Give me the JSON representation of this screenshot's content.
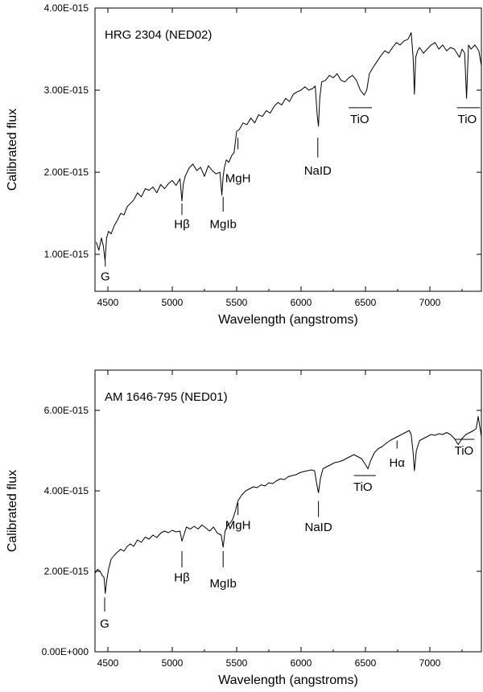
{
  "chart_data": [
    {
      "type": "line",
      "title": "HRG 2304  (NED02)",
      "xlabel": "Wavelength  (angstroms)",
      "ylabel": "Calibrated  flux",
      "xlim": [
        4400,
        7400
      ],
      "ylim": [
        5.5e-16,
        4e-15
      ],
      "xticks": [
        4500,
        5000,
        5500,
        6000,
        6500,
        7000
      ],
      "xtick_labels": [
        "4500",
        "5000",
        "5500",
        "6000",
        "6500",
        "7000"
      ],
      "yticks": [
        1e-15,
        2e-15,
        3e-15,
        4e-15
      ],
      "ytick_labels": [
        "1.00E-015",
        "2.00E-015",
        "3.00E-015",
        "4.00E-015"
      ],
      "series": [
        {
          "x": [
            4410,
            4430,
            4450,
            4465,
            4478,
            4490,
            4505,
            4525,
            4550,
            4575,
            4600,
            4625,
            4650,
            4675,
            4700,
            4730,
            4760,
            4790,
            4820,
            4850,
            4880,
            4910,
            4940,
            4970,
            5000,
            5030,
            5060,
            5075,
            5085,
            5100,
            5130,
            5160,
            5190,
            5220,
            5250,
            5280,
            5310,
            5340,
            5370,
            5385,
            5395,
            5405,
            5420,
            5440,
            5460,
            5480,
            5500,
            5520,
            5550,
            5580,
            5610,
            5640,
            5670,
            5700,
            5730,
            5760,
            5790,
            5820,
            5850,
            5880,
            5910,
            5940,
            5970,
            6000,
            6030,
            6060,
            6090,
            6110,
            6125,
            6135,
            6145,
            6160,
            6190,
            6220,
            6250,
            6280,
            6310,
            6340,
            6370,
            6400,
            6430,
            6460,
            6490,
            6510,
            6530,
            6560,
            6590,
            6620,
            6650,
            6680,
            6710,
            6740,
            6770,
            6800,
            6830,
            6855,
            6870,
            6880,
            6890,
            6905,
            6920,
            6950,
            6980,
            7010,
            7040,
            7070,
            7100,
            7130,
            7160,
            7190,
            7210,
            7230,
            7250,
            7270,
            7285,
            7300,
            7320,
            7350,
            7380,
            7400
          ],
          "y": [
            1.15e-15,
            1.05e-15,
            1.2e-15,
            1.1e-15,
            9.2e-16,
            1.2e-15,
            1.28e-15,
            1.25e-15,
            1.35e-15,
            1.42e-15,
            1.5e-15,
            1.48e-15,
            1.58e-15,
            1.62e-15,
            1.66e-15,
            1.75e-15,
            1.7e-15,
            1.8e-15,
            1.78e-15,
            1.82e-15,
            1.75e-15,
            1.85e-15,
            1.8e-15,
            1.86e-15,
            1.9e-15,
            1.84e-15,
            1.92e-15,
            1.65e-15,
            1.85e-15,
            1.95e-15,
            2.05e-15,
            2.1e-15,
            2.02e-15,
            2.06e-15,
            1.95e-15,
            2.08e-15,
            2.02e-15,
            1.98e-15,
            2e-15,
            1.72e-15,
            1.95e-15,
            2.06e-15,
            2.15e-15,
            2.12e-15,
            2.2e-15,
            2.24e-15,
            2.5e-15,
            2.52e-15,
            2.6e-15,
            2.58e-15,
            2.66e-15,
            2.6e-15,
            2.7e-15,
            2.68e-15,
            2.75e-15,
            2.72e-15,
            2.8e-15,
            2.85e-15,
            2.82e-15,
            2.9e-15,
            2.86e-15,
            2.95e-15,
            2.98e-15,
            3e-15,
            3.04e-15,
            3e-15,
            3.02e-15,
            3.05e-15,
            2.7e-15,
            2.56e-15,
            2.9e-15,
            3.1e-15,
            3.12e-15,
            3.18e-15,
            3.15e-15,
            3.2e-15,
            3.12e-15,
            3.1e-15,
            3.15e-15,
            3.18e-15,
            3.12e-15,
            3e-15,
            2.94e-15,
            3e-15,
            3.2e-15,
            3.28e-15,
            3.35e-15,
            3.42e-15,
            3.48e-15,
            3.45e-15,
            3.52e-15,
            3.58e-15,
            3.55e-15,
            3.6e-15,
            3.62e-15,
            3.7e-15,
            3.4e-15,
            2.95e-15,
            3.4e-15,
            3.48e-15,
            3.52e-15,
            3.45e-15,
            3.5e-15,
            3.55e-15,
            3.58e-15,
            3.5e-15,
            3.55e-15,
            3.48e-15,
            3.52e-15,
            3.5e-15,
            3.45e-15,
            3.4e-15,
            3.5e-15,
            3.45e-15,
            2.9e-15,
            3.55e-15,
            3.5e-15,
            3.55e-15,
            3.48e-15,
            3.3e-15
          ]
        }
      ],
      "annotations": [
        {
          "text": "G",
          "x": 4480,
          "y_line": [
            8.5e-16,
            9.2e-16
          ],
          "y_text": 6.8e-16,
          "overline": false
        },
        {
          "text": "Hβ",
          "x": 5075,
          "y_line": [
            1.48e-15,
            1.62e-15
          ],
          "y_text": 1.32e-15,
          "overline": false
        },
        {
          "text": "MgIb",
          "x": 5395,
          "y_line": [
            1.52e-15,
            1.7e-15
          ],
          "y_text": 1.32e-15,
          "overline": false
        },
        {
          "text": "MgH",
          "x": 5510,
          "y_line": [
            2.28e-15,
            2.42e-15
          ],
          "y_text": 1.88e-15,
          "overline": false
        },
        {
          "text": "NaID",
          "x": 6130,
          "y_line": [
            2.18e-15,
            2.42e-15
          ],
          "y_text": 1.97e-15,
          "overline": false
        },
        {
          "text": "TiO",
          "x": 6455,
          "x_range": [
            6370,
            6550
          ],
          "y_text": 2.6e-15,
          "overline": true
        },
        {
          "text": "TiO",
          "x": 7290,
          "x_range": [
            7210,
            7390
          ],
          "y_text": 2.6e-15,
          "overline": true
        }
      ]
    },
    {
      "type": "line",
      "title": "AM 1646-795  (NED01)",
      "xlabel": "Wavelength  (angstroms)",
      "ylabel": "Calibrated  flux",
      "xlim": [
        4400,
        7400
      ],
      "ylim": [
        0,
        7e-15
      ],
      "xticks": [
        4500,
        5000,
        5500,
        6000,
        6500,
        7000
      ],
      "xtick_labels": [
        "4500",
        "5000",
        "5500",
        "6000",
        "6500",
        "7000"
      ],
      "yticks": [
        0,
        2e-15,
        4e-15,
        6e-15
      ],
      "ytick_labels": [
        "0.00E+000",
        "2.00E-015",
        "4.00E-015",
        "6.00E-015"
      ],
      "series": [
        {
          "x": [
            4400,
            4420,
            4440,
            4455,
            4470,
            4480,
            4490,
            4505,
            4525,
            4550,
            4575,
            4600,
            4625,
            4650,
            4675,
            4700,
            4730,
            4760,
            4790,
            4820,
            4850,
            4880,
            4910,
            4940,
            4970,
            5000,
            5030,
            5060,
            5075,
            5090,
            5110,
            5140,
            5170,
            5200,
            5230,
            5260,
            5290,
            5320,
            5350,
            5380,
            5395,
            5410,
            5430,
            5450,
            5470,
            5490,
            5510,
            5540,
            5570,
            5600,
            5630,
            5660,
            5690,
            5720,
            5750,
            5780,
            5810,
            5840,
            5870,
            5900,
            5930,
            5960,
            5990,
            6020,
            6050,
            6080,
            6105,
            6120,
            6135,
            6150,
            6170,
            6200,
            6230,
            6260,
            6290,
            6320,
            6350,
            6380,
            6410,
            6440,
            6470,
            6500,
            6520,
            6540,
            6570,
            6600,
            6630,
            6660,
            6690,
            6720,
            6750,
            6780,
            6810,
            6840,
            6855,
            6870,
            6880,
            6895,
            6920,
            6950,
            6980,
            7010,
            7040,
            7070,
            7100,
            7130,
            7160,
            7190,
            7220,
            7250,
            7280,
            7310,
            7340,
            7360,
            7375,
            7390,
            7400
          ],
          "y": [
            1.95e-15,
            2.05e-15,
            2e-15,
            1.9e-15,
            1.85e-15,
            1.45e-15,
            1.75e-15,
            2.05e-15,
            2.3e-15,
            2.4e-15,
            2.48e-15,
            2.55e-15,
            2.5e-15,
            2.62e-15,
            2.68e-15,
            2.62e-15,
            2.78e-15,
            2.72e-15,
            2.85e-15,
            2.8e-15,
            2.9e-15,
            2.84e-15,
            2.95e-15,
            3e-15,
            2.96e-15,
            3.02e-15,
            2.98e-15,
            3e-15,
            2.75e-15,
            2.9e-15,
            3.1e-15,
            3.05e-15,
            3.12e-15,
            3.05e-15,
            3.15e-15,
            3.08e-15,
            3e-15,
            3.1e-15,
            2.95e-15,
            2.9e-15,
            2.6e-15,
            3e-15,
            3.15e-15,
            3.2e-15,
            3.3e-15,
            3.5e-15,
            3.75e-15,
            3.9e-15,
            4e-15,
            4.05e-15,
            4.1e-15,
            4.08e-15,
            4.15e-15,
            4.12e-15,
            4.2e-15,
            4.18e-15,
            4.25e-15,
            4.3e-15,
            4.28e-15,
            4.35e-15,
            4.38e-15,
            4.4e-15,
            4.45e-15,
            4.48e-15,
            4.5e-15,
            4.52e-15,
            4.5e-15,
            4.2e-15,
            3.95e-15,
            4.3e-15,
            4.55e-15,
            4.6e-15,
            4.65e-15,
            4.7e-15,
            4.72e-15,
            4.75e-15,
            4.8e-15,
            4.85e-15,
            4.9e-15,
            4.85e-15,
            4.8e-15,
            4.65e-15,
            4.55e-15,
            4.75e-15,
            4.95e-15,
            5.05e-15,
            5.1e-15,
            5.18e-15,
            5.25e-15,
            5.3e-15,
            5.35e-15,
            5.4e-15,
            5.45e-15,
            5.5e-15,
            5.4e-15,
            4.95e-15,
            4.5e-15,
            5e-15,
            5.25e-15,
            5.3e-15,
            5.35e-15,
            5.4e-15,
            5.38e-15,
            5.42e-15,
            5.4e-15,
            5.45e-15,
            5.4e-15,
            5.3e-15,
            5.15e-15,
            5.3e-15,
            5.4e-15,
            5.45e-15,
            5.5e-15,
            5.55e-15,
            5.85e-15,
            5.55e-15,
            5.35e-15
          ]
        }
      ],
      "annotations": [
        {
          "text": "G",
          "x": 4475,
          "y_line": [
            1e-15,
            1.35e-15
          ],
          "y_text": 6e-16,
          "overline": false
        },
        {
          "text": "Hβ",
          "x": 5075,
          "y_line": [
            2.1e-15,
            2.5e-15
          ],
          "y_text": 1.75e-15,
          "overline": false
        },
        {
          "text": "MgIb",
          "x": 5395,
          "y_line": [
            2.1e-15,
            2.5e-15
          ],
          "y_text": 1.6e-15,
          "overline": false
        },
        {
          "text": "MgH",
          "x": 5510,
          "y_line": [
            3.4e-15,
            3.7e-15
          ],
          "y_text": 3.05e-15,
          "overline": false
        },
        {
          "text": "NaID",
          "x": 6135,
          "y_line": [
            3.35e-15,
            3.75e-15
          ],
          "y_text": 3e-15,
          "overline": false
        },
        {
          "text": "TiO",
          "x": 6480,
          "x_range": [
            6410,
            6580
          ],
          "y_text": 4e-15,
          "overline": true
        },
        {
          "text": "Hα",
          "x": 6745,
          "y_line": [
            5.05e-15,
            5.25e-15
          ],
          "y_text": 4.6e-15,
          "overline": false
        },
        {
          "text": "TiO",
          "x": 7265,
          "x_range": [
            7195,
            7345
          ],
          "y_text": 4.9e-15,
          "overline": true
        }
      ]
    }
  ]
}
